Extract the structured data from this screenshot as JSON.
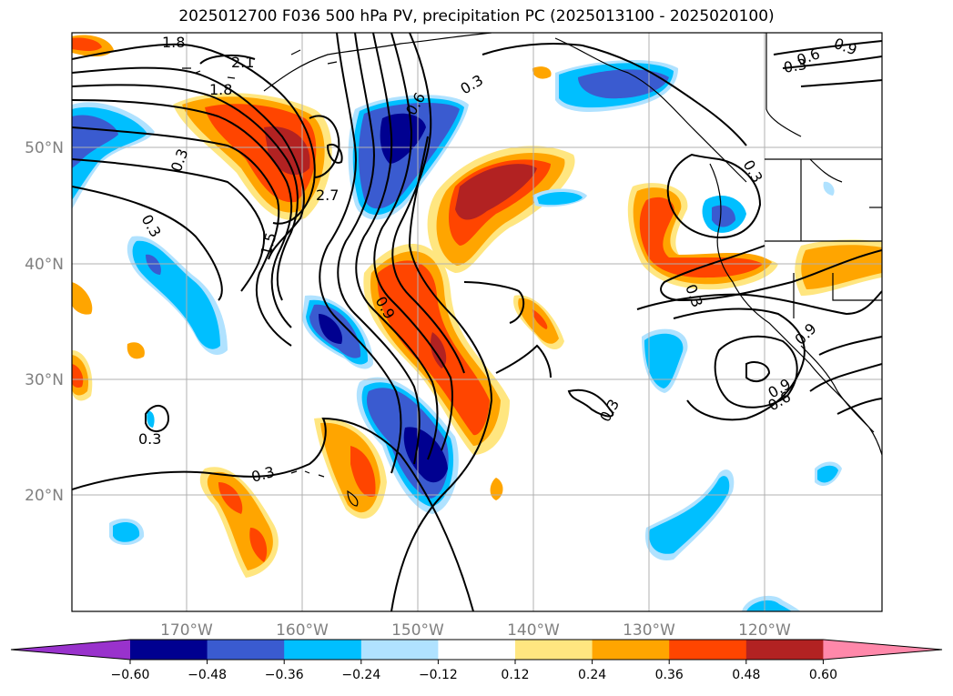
{
  "title": "2025012700 F036 500 hPa PV, precipitation PC (2025013100 - 2025020100)",
  "lon_labels": [
    "170°W",
    "160°W",
    "150°W",
    "140°W",
    "130°W",
    "120°W"
  ],
  "lat_labels": [
    "50°N",
    "40°N",
    "30°N",
    "20°N"
  ],
  "contour_labels": [
    "1.8",
    "2.1",
    "1.8",
    "0.3",
    "0.3",
    "1.5",
    "2.7",
    "0.6",
    "0.3",
    "0.9",
    "0.3",
    "0.9",
    "0.6",
    "0.3",
    "0.3",
    "0.3",
    "0.3",
    "0.9",
    "0.9",
    "0.6",
    "0.3"
  ],
  "colorbar": {
    "ticks": [
      "−0.60",
      "−0.48",
      "−0.36",
      "−0.24",
      "−0.12",
      "0.12",
      "0.24",
      "0.36",
      "0.48",
      "0.60"
    ],
    "colors": [
      "#9932cc",
      "#000090",
      "#3a5bd0",
      "#00bfff",
      "#b0e2ff",
      "#ffffff",
      "#ffe680",
      "#ffa500",
      "#ff4500",
      "#b22222",
      "#ff88aa"
    ]
  },
  "colors": {
    "neg_extreme": "#000090",
    "neg_strong": "#3a5bd0",
    "neg_mid": "#00bfff",
    "neg_weak": "#b0e2ff",
    "pos_weak": "#ffe680",
    "pos_mid": "#ffa500",
    "pos_strong": "#ff4500",
    "pos_extreme": "#b22222",
    "gridline": "#b0b0b0",
    "contour": "#000000",
    "axis_label": "#808080"
  }
}
